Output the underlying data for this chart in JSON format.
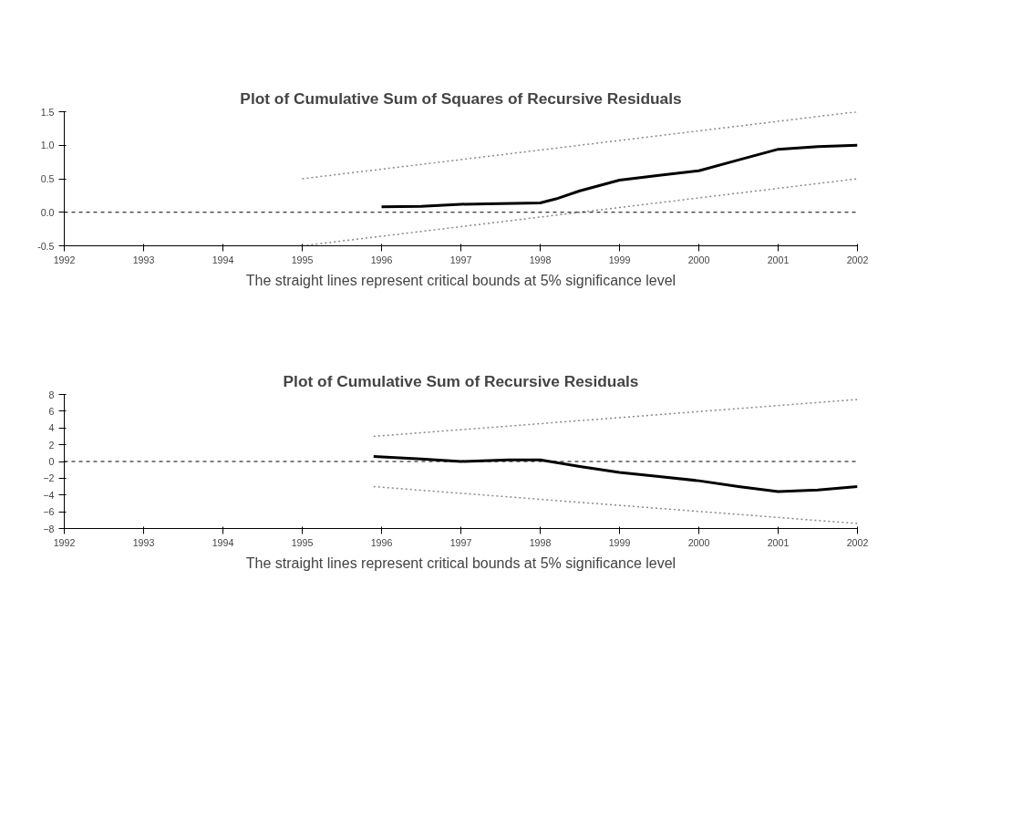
{
  "chart_data": [
    {
      "type": "line",
      "title": "Plot of Cumulative Sum of Squares of Recursive Residuals",
      "annotations": [
        "The straight lines represent critical bounds at 5% significance level"
      ],
      "xlim": [
        1992,
        2002
      ],
      "xticks": [
        1992,
        1993,
        1994,
        1995,
        1996,
        1997,
        1998,
        1999,
        2000,
        2001,
        2002
      ],
      "ylim": [
        -0.5,
        1.5
      ],
      "yticks": [
        {
          "value": -0.5,
          "label": "-0.5"
        },
        {
          "value": 0,
          "label": "0.0"
        },
        {
          "value": 0.5,
          "label": "0.5"
        },
        {
          "value": 1,
          "label": "1.0"
        },
        {
          "value": 1.5,
          "label": "1.5"
        }
      ],
      "grid": false,
      "series": [
        {
          "color": "#000000",
          "line_style": "solid",
          "x": [
            1996,
            1996.5,
            1997,
            1997.5,
            1998,
            1998.2,
            1998.5,
            1999,
            1999.5,
            2000,
            2000.5,
            2001,
            2001.5,
            2002
          ],
          "values": [
            0.08,
            0.09,
            0.12,
            0.13,
            0.14,
            0.2,
            0.32,
            0.48,
            0.55,
            0.62,
            0.78,
            0.94,
            0.98,
            1.0
          ]
        },
        {
          "color": "#888888",
          "line_style": "dotted",
          "x": [
            1995,
            2002
          ],
          "values": [
            0.5,
            1.5
          ]
        },
        {
          "color": "#888888",
          "line_style": "dotted",
          "x": [
            1995,
            2002
          ],
          "values": [
            -0.5,
            0.5
          ]
        }
      ],
      "ref_lines": [
        {
          "axis": "y",
          "value": 0,
          "color": "#000000",
          "line_style": "dashed"
        }
      ]
    },
    {
      "type": "line",
      "title": "Plot of Cumulative Sum of Recursive Residuals",
      "annotations": [
        "The straight lines represent critical bounds at 5% significance level"
      ],
      "xlim": [
        1992,
        2002
      ],
      "xticks": [
        1992,
        1993,
        1994,
        1995,
        1996,
        1997,
        1998,
        1999,
        2000,
        2001,
        2002
      ],
      "ylim": [
        -8,
        8
      ],
      "yticks": [
        -8,
        -6,
        -4,
        -2,
        0,
        2,
        4,
        6,
        8
      ],
      "grid": false,
      "series": [
        {
          "color": "#000000",
          "line_style": "solid",
          "x": [
            1995.9,
            1996.5,
            1997,
            1997.6,
            1998,
            1998.5,
            1999,
            1999.5,
            2000,
            2000.5,
            2001,
            2001.5,
            2002
          ],
          "values": [
            0.6,
            0.3,
            0,
            0.2,
            0.2,
            -0.6,
            -1.3,
            -1.8,
            -2.3,
            -3.0,
            -3.6,
            -3.4,
            -3.0
          ]
        },
        {
          "color": "#888888",
          "line_style": "dotted",
          "x": [
            1995.9,
            2002
          ],
          "values": [
            3,
            7.4
          ]
        },
        {
          "color": "#888888",
          "line_style": "dotted",
          "x": [
            1995.9,
            2002
          ],
          "values": [
            -3,
            -7.4
          ]
        }
      ],
      "ref_lines": [
        {
          "axis": "y",
          "value": 0,
          "color": "#000000",
          "line_style": "dashed"
        }
      ]
    }
  ]
}
